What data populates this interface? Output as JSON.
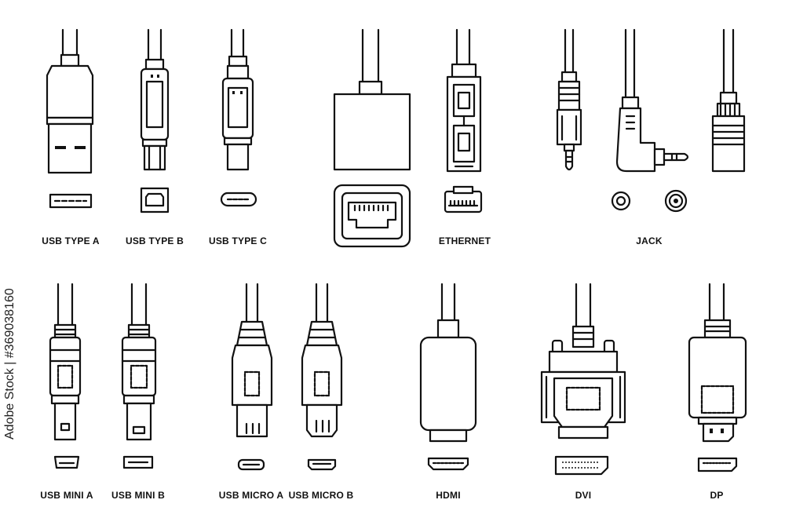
{
  "labels": {
    "usb_type_a": "USB TYPE A",
    "usb_type_b": "USB TYPE B",
    "usb_type_c": "USB TYPE C",
    "ethernet": "ETHERNET",
    "jack": "JACK",
    "usb_mini_a": "USB MINI A",
    "usb_mini_b": "USB MINI B",
    "usb_micro_a": "USB MICRO A",
    "usb_micro_b": "USB MICRO B",
    "hdmi": "HDMI",
    "dvi": "DVI",
    "dp": "DP"
  },
  "watermark": "Adobe Stock | #369038160"
}
